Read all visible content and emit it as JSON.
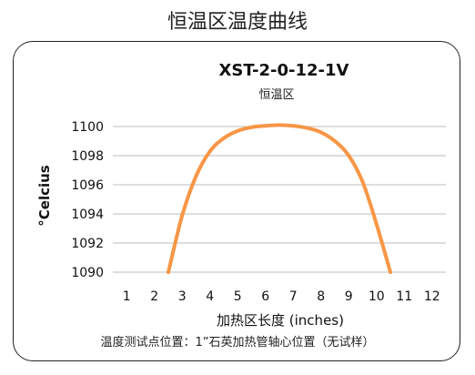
{
  "page_title": "恒温区温度曲线",
  "note": "温度测试点位置：1”石英加热管轴心位置（无试样）",
  "chart_data": {
    "type": "line",
    "title": "XST-2-0-12-1V",
    "subtitle": "恒温区",
    "xlabel": "加热区长度 (inches)",
    "ylabel": "°Celcius",
    "xlim": [
      0.5,
      12.5
    ],
    "ylim": [
      1090,
      1101
    ],
    "xticks": [
      1,
      2,
      3,
      4,
      5,
      6,
      7,
      8,
      9,
      10,
      11,
      12
    ],
    "yticks": [
      1090,
      1092,
      1094,
      1096,
      1098,
      1100
    ],
    "grid": "horizontal",
    "color": "#F79646",
    "series": [
      {
        "x": [
          2.5,
          3,
          3.5,
          4,
          4.5,
          5,
          5.5,
          6,
          6.5,
          7,
          7.5,
          8,
          8.5,
          9,
          9.5,
          10,
          10.5
        ],
        "y": [
          1090.0,
          1093.9,
          1096.6,
          1098.3,
          1099.2,
          1099.7,
          1099.95,
          1100.05,
          1100.1,
          1100.05,
          1099.9,
          1099.6,
          1099.0,
          1098.0,
          1096.2,
          1093.3,
          1090.0
        ]
      }
    ]
  }
}
